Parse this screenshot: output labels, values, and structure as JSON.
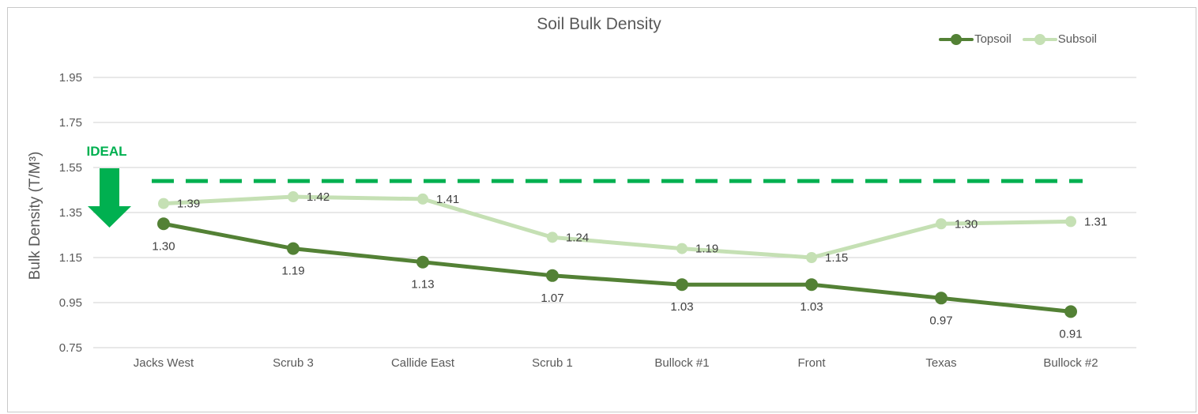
{
  "chart_data": {
    "type": "line",
    "title": "Soil Bulk Density",
    "ylabel": "Bulk Density (T/M³)",
    "xlabel": "",
    "categories": [
      "Jacks West",
      "Scrub 3",
      "Callide East",
      "Scrub 1",
      "Bullock #1",
      "Front",
      "Texas",
      "Bullock #2"
    ],
    "series": [
      {
        "name": "Topsoil",
        "color": "#538135",
        "marker": "circle",
        "label_position": "below",
        "values": [
          1.3,
          1.19,
          1.13,
          1.07,
          1.03,
          1.03,
          0.97,
          0.91
        ]
      },
      {
        "name": "Subsoil",
        "color": "#c5e0b4",
        "marker": "circle",
        "label_position": "right",
        "values": [
          1.39,
          1.42,
          1.41,
          1.24,
          1.19,
          1.15,
          1.3,
          1.31
        ]
      }
    ],
    "yticks": [
      1.95,
      1.75,
      1.55,
      1.35,
      1.15,
      0.95,
      0.75
    ],
    "ylim": [
      0.75,
      1.95
    ],
    "value_format": "0.00",
    "grid": true,
    "legend_position": "top-right",
    "annotation": {
      "label": "IDEAL",
      "value": 1.49,
      "style": "dashed",
      "color": "#00b050"
    },
    "colors": {
      "gridline": "#d9d9d9",
      "axis_text": "#595959",
      "data_label_text": "#404040",
      "title_text": "#595959"
    }
  }
}
